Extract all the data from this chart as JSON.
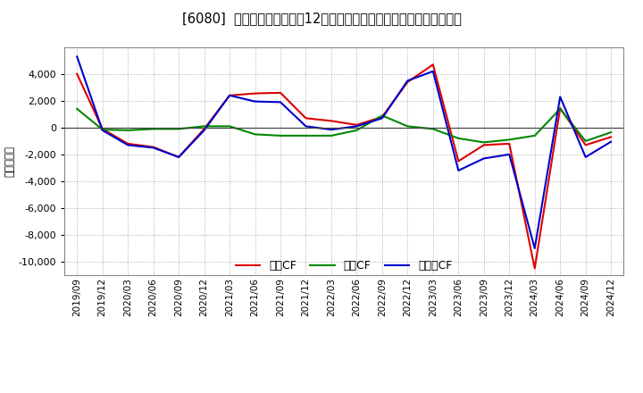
{
  "title": "[6080]  キャッシュフローの12か月移動合計の対前年同期増減額の推移",
  "ylabel": "（百万円）",
  "background_color": "#ffffff",
  "plot_background_color": "#ffffff",
  "grid_color": "#aaaaaa",
  "x_labels": [
    "2019/09",
    "2019/12",
    "2020/03",
    "2020/06",
    "2020/09",
    "2020/12",
    "2021/03",
    "2021/06",
    "2021/09",
    "2021/12",
    "2022/03",
    "2022/06",
    "2022/09",
    "2022/12",
    "2023/03",
    "2023/06",
    "2023/09",
    "2023/12",
    "2024/03",
    "2024/06",
    "2024/09",
    "2024/12"
  ],
  "営業CF": [
    4000,
    -100,
    -1200,
    -1450,
    -2200,
    -100,
    2400,
    2550,
    2600,
    700,
    500,
    200,
    800,
    3400,
    4700,
    -2500,
    -1300,
    -1200,
    -10500,
    1450,
    -1300,
    -700
  ],
  "投資CF": [
    1400,
    -150,
    -200,
    -100,
    -100,
    100,
    100,
    -500,
    -600,
    -600,
    -600,
    -200,
    900,
    100,
    -100,
    -800,
    -1100,
    -900,
    -600,
    1400,
    -1000,
    -350
  ],
  "フリーCF": [
    5300,
    -200,
    -1300,
    -1500,
    -2200,
    -200,
    2400,
    1950,
    1900,
    100,
    -150,
    100,
    700,
    3500,
    4200,
    -3200,
    -2300,
    -2000,
    -9000,
    2300,
    -2200,
    -1050
  ],
  "ylim": [
    -11000,
    6000
  ],
  "yticks": [
    -10000,
    -8000,
    -6000,
    -4000,
    -2000,
    0,
    2000,
    4000
  ],
  "colors": {
    "営業CF": "#dd0000",
    "投資CF": "#008800",
    "フリーCF": "#0000cc"
  },
  "legend_labels": [
    "営業CF",
    "投資CF",
    "フリーCF"
  ],
  "title_fontsize": 10.5,
  "tick_fontsize": 8,
  "legend_fontsize": 9
}
